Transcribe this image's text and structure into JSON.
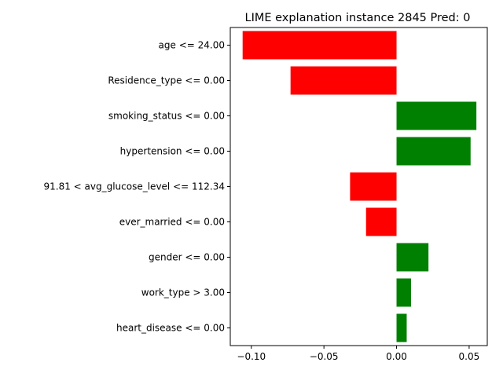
{
  "chart_data": {
    "type": "bar",
    "orientation": "horizontal",
    "title": "LIME explanation instance 2845 Pred: 0",
    "xlabel": "",
    "ylabel": "",
    "xlim": [
      -0.1145,
      0.0625
    ],
    "x_ticks": [
      -0.1,
      -0.05,
      0.0,
      0.05
    ],
    "x_tick_labels": [
      "−0.10",
      "−0.05",
      "0.00",
      "0.05"
    ],
    "categories": [
      "age <= 24.00",
      "Residence_type <= 0.00",
      "smoking_status <= 0.00",
      "hypertension <= 0.00",
      "91.81 < avg_glucose_level <= 112.34",
      "ever_married <= 0.00",
      "gender <= 0.00",
      "work_type > 3.00",
      "heart_disease <= 0.00"
    ],
    "values": [
      -0.106,
      -0.073,
      0.055,
      0.051,
      -0.032,
      -0.021,
      0.022,
      0.01,
      0.007
    ],
    "colors": {
      "positive": "#008000",
      "negative": "#ff0000"
    },
    "grid": false,
    "legend": "none"
  }
}
